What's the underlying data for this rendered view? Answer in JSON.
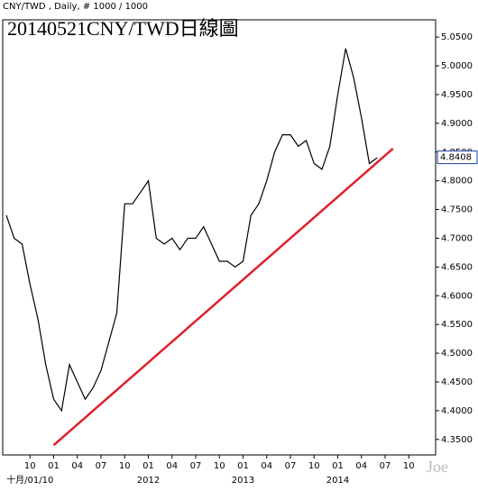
{
  "chart_data": {
    "type": "line",
    "header": "CNY/TWD , Daily, # 1000 / 1000",
    "title": "20140521CNY/TWD日線圖",
    "watermark": "Joe",
    "categories": [
      null,
      null,
      null,
      "10",
      null,
      null,
      "01",
      null,
      null,
      "04",
      null,
      null,
      "07",
      null,
      null,
      "10",
      null,
      null,
      "01",
      null,
      null,
      "04",
      null,
      null,
      "07",
      null,
      null,
      "10",
      null,
      null,
      "01",
      null,
      null,
      "04",
      null,
      null,
      "07",
      null,
      null,
      "10",
      null,
      null,
      "01",
      null,
      null,
      "04",
      null,
      null,
      "07",
      null,
      null,
      "10",
      null,
      null
    ],
    "year_labels": [
      null,
      null,
      null,
      "十月/01/10",
      null,
      null,
      null,
      null,
      null,
      null,
      null,
      null,
      null,
      null,
      null,
      null,
      null,
      null,
      "2012",
      null,
      null,
      null,
      null,
      null,
      null,
      null,
      null,
      null,
      null,
      null,
      "2013",
      null,
      null,
      null,
      null,
      null,
      null,
      null,
      null,
      null,
      null,
      null,
      "2014",
      null,
      null,
      null,
      null,
      null,
      null,
      null,
      null,
      null,
      null,
      null
    ],
    "series": [
      {
        "name": "CNY/TWD",
        "color": "#000000",
        "values": [
          4.74,
          4.7,
          4.69,
          4.62,
          4.56,
          4.48,
          4.42,
          4.4,
          4.48,
          4.45,
          4.42,
          4.44,
          4.47,
          4.52,
          4.57,
          4.76,
          4.76,
          4.78,
          4.8,
          4.7,
          4.69,
          4.7,
          4.68,
          4.7,
          4.7,
          4.72,
          4.69,
          4.66,
          4.66,
          4.65,
          4.66,
          4.74,
          4.76,
          4.8,
          4.85,
          4.88,
          4.88,
          4.86,
          4.87,
          4.83,
          4.82,
          4.86,
          4.95,
          5.03,
          4.98,
          4.91,
          4.83,
          4.84,
          null,
          null,
          null,
          null,
          null,
          null
        ]
      },
      {
        "name": "trend",
        "color": "#e0202a",
        "values": [
          null,
          null,
          null,
          null,
          null,
          null,
          4.34,
          4.352,
          4.364,
          4.376,
          4.388,
          4.4,
          4.412,
          4.424,
          4.436,
          4.448,
          4.46,
          4.472,
          4.484,
          4.496,
          4.508,
          4.52,
          4.532,
          4.544,
          4.556,
          4.568,
          4.58,
          4.592,
          4.604,
          4.616,
          4.628,
          4.64,
          4.652,
          4.664,
          4.676,
          4.688,
          4.7,
          4.712,
          4.724,
          4.736,
          4.748,
          4.76,
          4.772,
          4.784,
          4.796,
          4.808,
          4.82,
          4.832,
          4.844,
          4.856,
          null,
          null,
          null,
          null
        ]
      }
    ],
    "last_price": {
      "value": 4.8408,
      "label": "4.8408",
      "color": "#1a3fa0"
    },
    "ylim": [
      4.323,
      5.08
    ],
    "yticks": [
      {
        "value": 4.35,
        "label": "4.3500"
      },
      {
        "value": 4.4,
        "label": "4.4000"
      },
      {
        "value": 4.45,
        "label": "4.4500"
      },
      {
        "value": 4.5,
        "label": "4.5000"
      },
      {
        "value": 4.55,
        "label": "4.5500"
      },
      {
        "value": 4.6,
        "label": "4.6000"
      },
      {
        "value": 4.65,
        "label": "4.6500"
      },
      {
        "value": 4.7,
        "label": "4.7000"
      },
      {
        "value": 4.75,
        "label": "4.7500"
      },
      {
        "value": 4.8,
        "label": "4.8000"
      },
      {
        "value": 4.85,
        "label": "4.8500"
      },
      {
        "value": 4.9,
        "label": "4.9000"
      },
      {
        "value": 4.95,
        "label": "4.9500"
      },
      {
        "value": 5.0,
        "label": "5.0000"
      },
      {
        "value": 5.05,
        "label": "5.0500"
      }
    ]
  }
}
